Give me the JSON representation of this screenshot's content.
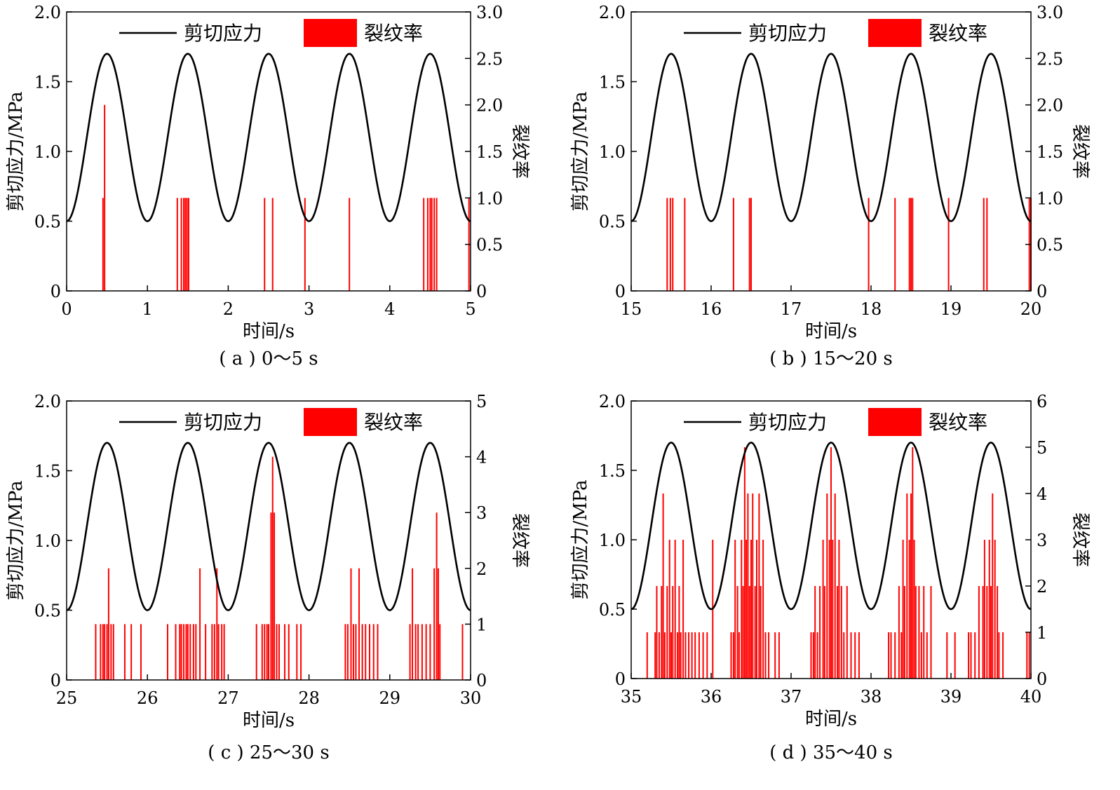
{
  "chart_data": [
    {
      "type": "line",
      "caption": "( a ) 0～5 s",
      "xlabel": "时间/s",
      "ylabel_left": "剪切应力/MPa",
      "ylabel_right": "裂纹率",
      "xlim": [
        0,
        5
      ],
      "xticks": [
        0,
        1,
        2,
        3,
        4,
        5
      ],
      "ylim_left": [
        0,
        2.0
      ],
      "yticks_left": [
        "0",
        "0.5",
        "1.0",
        "1.5",
        "2.0"
      ],
      "ylim_right": [
        0,
        3.0
      ],
      "yticks_right": [
        "0",
        "0.5",
        "1.0",
        "1.5",
        "2.0",
        "2.5",
        "3.0"
      ],
      "legend": {
        "placement": "top",
        "line_label": "剪切应力",
        "bar_label": "裂纹率"
      },
      "stress": {
        "name": "剪切应力",
        "color": "#000000",
        "mean": 1.1,
        "amplitude": 0.6,
        "period": 1.0,
        "peak_at": 0.5
      },
      "crack_rate": {
        "name": "裂纹率",
        "color": "#ff0000",
        "events": [
          [
            0.45,
            1
          ],
          [
            0.47,
            2
          ],
          [
            1.37,
            1
          ],
          [
            1.42,
            1
          ],
          [
            1.45,
            1
          ],
          [
            1.47,
            1
          ],
          [
            1.49,
            1
          ],
          [
            1.51,
            1
          ],
          [
            2.45,
            1
          ],
          [
            2.55,
            1
          ],
          [
            2.95,
            1
          ],
          [
            3.5,
            1
          ],
          [
            4.42,
            1
          ],
          [
            4.47,
            1
          ],
          [
            4.5,
            1
          ],
          [
            4.52,
            1
          ],
          [
            4.55,
            1
          ],
          [
            4.58,
            1
          ],
          [
            4.98,
            1
          ]
        ]
      }
    },
    {
      "type": "line",
      "caption": "( b ) 15～20 s",
      "xlabel": "时间/s",
      "ylabel_left": "剪切应力/MPa",
      "ylabel_right": "裂纹率",
      "xlim": [
        15,
        20
      ],
      "xticks": [
        15,
        16,
        17,
        18,
        19,
        20
      ],
      "ylim_left": [
        0,
        2.0
      ],
      "yticks_left": [
        "0",
        "0.5",
        "1.0",
        "1.5",
        "2.0"
      ],
      "ylim_right": [
        0,
        3.0
      ],
      "yticks_right": [
        "0",
        "0.5",
        "1.0",
        "1.5",
        "2.0",
        "2.5",
        "3.0"
      ],
      "legend": {
        "placement": "top",
        "line_label": "剪切应力",
        "bar_label": "裂纹率"
      },
      "stress": {
        "name": "剪切应力",
        "color": "#000000",
        "mean": 1.1,
        "amplitude": 0.6,
        "period": 1.0,
        "peak_at": 15.5
      },
      "crack_rate": {
        "name": "裂纹率",
        "color": "#ff0000",
        "events": [
          [
            15.45,
            1
          ],
          [
            15.49,
            1
          ],
          [
            15.52,
            1
          ],
          [
            15.67,
            1
          ],
          [
            16.28,
            1
          ],
          [
            16.48,
            1
          ],
          [
            16.5,
            1
          ],
          [
            17.97,
            1
          ],
          [
            18.3,
            1
          ],
          [
            18.48,
            1
          ],
          [
            18.5,
            1
          ],
          [
            18.52,
            1
          ],
          [
            18.97,
            1
          ],
          [
            19.41,
            1
          ],
          [
            19.45,
            1
          ],
          [
            19.98,
            1
          ],
          [
            20.0,
            1
          ]
        ]
      }
    },
    {
      "type": "line",
      "caption": "( c ) 25～30 s",
      "xlabel": "时间/s",
      "ylabel_left": "剪切应力/MPa",
      "ylabel_right": "裂纹率",
      "xlim": [
        25,
        30
      ],
      "xticks": [
        25,
        26,
        27,
        28,
        29,
        30
      ],
      "ylim_left": [
        0,
        2.0
      ],
      "yticks_left": [
        "0",
        "0.5",
        "1.0",
        "1.5",
        "2.0"
      ],
      "ylim_right": [
        0,
        5
      ],
      "yticks_right": [
        "0",
        "1",
        "2",
        "3",
        "4",
        "5"
      ],
      "legend": {
        "placement": "top",
        "line_label": "剪切应力",
        "bar_label": "裂纹率"
      },
      "stress": {
        "name": "剪切应力",
        "color": "#000000",
        "mean": 1.1,
        "amplitude": 0.6,
        "period": 1.0,
        "peak_at": 25.5
      },
      "crack_rate": {
        "name": "裂纹率",
        "color": "#ff0000",
        "events": [
          [
            25.36,
            1
          ],
          [
            25.42,
            1
          ],
          [
            25.45,
            1
          ],
          [
            25.47,
            1
          ],
          [
            25.5,
            1
          ],
          [
            25.52,
            2
          ],
          [
            25.55,
            1
          ],
          [
            25.58,
            1
          ],
          [
            25.72,
            1
          ],
          [
            25.8,
            1
          ],
          [
            25.92,
            1
          ],
          [
            26.25,
            1
          ],
          [
            26.35,
            1
          ],
          [
            26.4,
            1
          ],
          [
            26.42,
            1
          ],
          [
            26.45,
            1
          ],
          [
            26.48,
            1
          ],
          [
            26.5,
            1
          ],
          [
            26.53,
            1
          ],
          [
            26.57,
            1
          ],
          [
            26.6,
            1
          ],
          [
            26.65,
            2
          ],
          [
            26.72,
            1
          ],
          [
            26.8,
            1
          ],
          [
            26.83,
            1
          ],
          [
            26.86,
            2
          ],
          [
            26.88,
            1
          ],
          [
            26.92,
            1
          ],
          [
            26.95,
            1
          ],
          [
            27.35,
            1
          ],
          [
            27.42,
            1
          ],
          [
            27.45,
            1
          ],
          [
            27.48,
            1
          ],
          [
            27.5,
            1
          ],
          [
            27.53,
            3
          ],
          [
            27.55,
            4
          ],
          [
            27.57,
            3
          ],
          [
            27.6,
            1
          ],
          [
            27.63,
            1
          ],
          [
            27.7,
            1
          ],
          [
            27.75,
            1
          ],
          [
            27.85,
            1
          ],
          [
            27.9,
            1
          ],
          [
            28.45,
            1
          ],
          [
            28.48,
            1
          ],
          [
            28.52,
            2
          ],
          [
            28.55,
            1
          ],
          [
            28.58,
            1
          ],
          [
            28.62,
            2
          ],
          [
            28.66,
            1
          ],
          [
            28.7,
            1
          ],
          [
            28.75,
            1
          ],
          [
            28.8,
            1
          ],
          [
            28.85,
            1
          ],
          [
            29.25,
            1
          ],
          [
            29.28,
            2
          ],
          [
            29.32,
            1
          ],
          [
            29.35,
            1
          ],
          [
            29.4,
            1
          ],
          [
            29.45,
            1
          ],
          [
            29.5,
            1
          ],
          [
            29.55,
            2
          ],
          [
            29.58,
            3
          ],
          [
            29.6,
            2
          ],
          [
            29.62,
            1
          ],
          [
            29.9,
            1
          ]
        ]
      }
    },
    {
      "type": "line",
      "caption": "( d ) 35～40 s",
      "xlabel": "时间/s",
      "ylabel_left": "剪切应力/MPa",
      "ylabel_right": "裂纹率",
      "xlim": [
        35,
        40
      ],
      "xticks": [
        35,
        36,
        37,
        38,
        39,
        40
      ],
      "ylim_left": [
        0,
        2.0
      ],
      "yticks_left": [
        "0",
        "0.5",
        "1.0",
        "1.5",
        "2.0"
      ],
      "ylim_right": [
        0,
        6
      ],
      "yticks_right": [
        "0",
        "1",
        "2",
        "3",
        "4",
        "5",
        "6"
      ],
      "legend": {
        "placement": "top",
        "line_label": "剪切应力",
        "bar_label": "裂纹率"
      },
      "stress": {
        "name": "剪切应力",
        "color": "#000000",
        "mean": 1.1,
        "amplitude": 0.6,
        "period": 1.0,
        "peak_at": 35.5
      },
      "crack_rate": {
        "name": "裂纹率",
        "color": "#ff0000",
        "events": [
          [
            35.2,
            1
          ],
          [
            35.3,
            1
          ],
          [
            35.32,
            2
          ],
          [
            35.35,
            1
          ],
          [
            35.38,
            2
          ],
          [
            35.4,
            4
          ],
          [
            35.42,
            1
          ],
          [
            35.45,
            2
          ],
          [
            35.48,
            3
          ],
          [
            35.5,
            1
          ],
          [
            35.52,
            2
          ],
          [
            35.55,
            3
          ],
          [
            35.58,
            1
          ],
          [
            35.6,
            2
          ],
          [
            35.62,
            1
          ],
          [
            35.65,
            3
          ],
          [
            35.68,
            1
          ],
          [
            35.72,
            1
          ],
          [
            35.76,
            1
          ],
          [
            35.8,
            1
          ],
          [
            35.85,
            1
          ],
          [
            35.9,
            1
          ],
          [
            35.95,
            1
          ],
          [
            36.02,
            3
          ],
          [
            36.25,
            1
          ],
          [
            36.28,
            1
          ],
          [
            36.3,
            3
          ],
          [
            36.33,
            2
          ],
          [
            36.35,
            1
          ],
          [
            36.38,
            3
          ],
          [
            36.4,
            2
          ],
          [
            36.42,
            5
          ],
          [
            36.44,
            3
          ],
          [
            36.46,
            4
          ],
          [
            36.48,
            2
          ],
          [
            36.5,
            3
          ],
          [
            36.52,
            4
          ],
          [
            36.55,
            2
          ],
          [
            36.57,
            3
          ],
          [
            36.6,
            4
          ],
          [
            36.62,
            2
          ],
          [
            36.65,
            3
          ],
          [
            36.68,
            1
          ],
          [
            36.72,
            1
          ],
          [
            36.8,
            1
          ],
          [
            36.85,
            1
          ],
          [
            37.25,
            1
          ],
          [
            37.28,
            1
          ],
          [
            37.3,
            2
          ],
          [
            37.33,
            1
          ],
          [
            37.36,
            2
          ],
          [
            37.4,
            3
          ],
          [
            37.42,
            2
          ],
          [
            37.45,
            4
          ],
          [
            37.48,
            3
          ],
          [
            37.5,
            5
          ],
          [
            37.52,
            3
          ],
          [
            37.55,
            4
          ],
          [
            37.58,
            2
          ],
          [
            37.6,
            3
          ],
          [
            37.63,
            2
          ],
          [
            37.66,
            1
          ],
          [
            37.7,
            2
          ],
          [
            37.75,
            1
          ],
          [
            37.8,
            1
          ],
          [
            37.85,
            1
          ],
          [
            38.22,
            1
          ],
          [
            38.25,
            1
          ],
          [
            38.3,
            1
          ],
          [
            38.35,
            2
          ],
          [
            38.38,
            1
          ],
          [
            38.4,
            3
          ],
          [
            38.42,
            2
          ],
          [
            38.45,
            4
          ],
          [
            38.48,
            3
          ],
          [
            38.5,
            4
          ],
          [
            38.52,
            5
          ],
          [
            38.54,
            3
          ],
          [
            38.56,
            2
          ],
          [
            38.6,
            2
          ],
          [
            38.63,
            1
          ],
          [
            38.66,
            2
          ],
          [
            38.7,
            1
          ],
          [
            38.75,
            2
          ],
          [
            38.95,
            1
          ],
          [
            39.05,
            1
          ],
          [
            39.22,
            1
          ],
          [
            39.25,
            1
          ],
          [
            39.3,
            1
          ],
          [
            39.35,
            2
          ],
          [
            39.4,
            2
          ],
          [
            39.42,
            3
          ],
          [
            39.45,
            2
          ],
          [
            39.48,
            3
          ],
          [
            39.5,
            2
          ],
          [
            39.52,
            4
          ],
          [
            39.55,
            3
          ],
          [
            39.58,
            2
          ],
          [
            39.6,
            1
          ],
          [
            39.65,
            1
          ],
          [
            39.95,
            1
          ],
          [
            39.98,
            1
          ]
        ]
      }
    }
  ]
}
